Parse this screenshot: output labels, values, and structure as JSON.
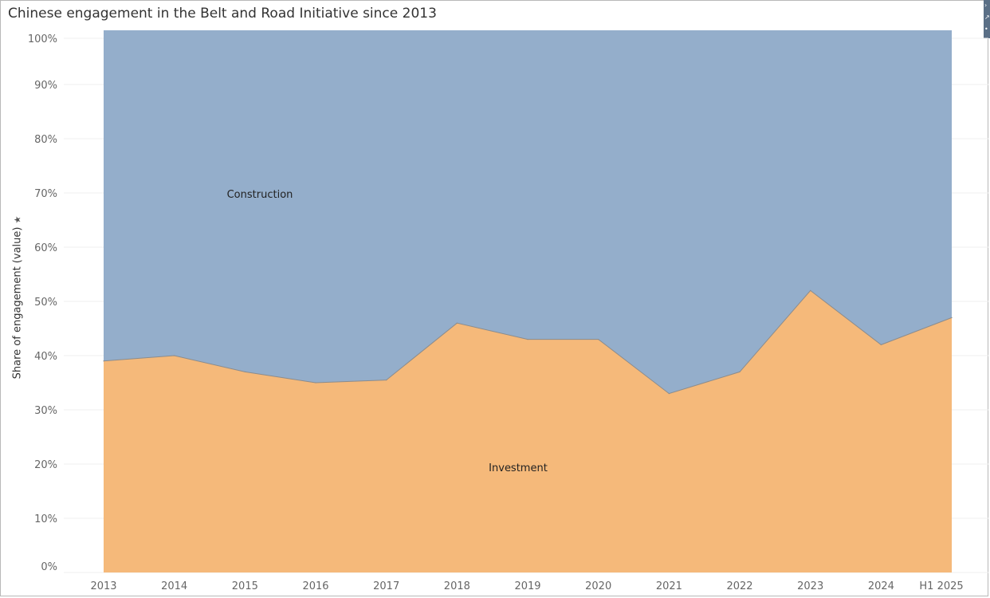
{
  "title": "Chinese engagement in the Belt and Road Initiative since 2013",
  "chart_data": {
    "type": "area",
    "stacked_percent": true,
    "title": "Chinese engagement in the Belt and Road Initiative since 2013",
    "xlabel": "",
    "ylabel": "Share of engagement (value)",
    "categories": [
      "2013",
      "2014",
      "2015",
      "2016",
      "2017",
      "2018",
      "2019",
      "2020",
      "2021",
      "2022",
      "2023",
      "2024",
      "H1  2025"
    ],
    "series": [
      {
        "name": "Investment",
        "values": [
          39,
          40,
          37,
          35,
          35.5,
          46,
          43,
          43,
          33,
          37,
          52,
          42,
          47
        ]
      },
      {
        "name": "Construction",
        "values": [
          61,
          60,
          63,
          65,
          64.5,
          54,
          57,
          57,
          67,
          63,
          48,
          58,
          53
        ]
      }
    ],
    "area_labels": [
      {
        "text": "Construction",
        "series": "Construction"
      },
      {
        "text": "Investment",
        "series": "Investment"
      }
    ],
    "yticks": [
      "0%",
      "10%",
      "20%",
      "30%",
      "40%",
      "50%",
      "60%",
      "70%",
      "80%",
      "90%",
      "100%"
    ],
    "ylim": [
      0,
      100
    ],
    "grid": true,
    "colors": {
      "Investment": "#f5b97a",
      "Construction": "#94aecb",
      "boundary": "#8c8c8c"
    }
  },
  "icons": {
    "ylabel_sort": "sort-icon"
  }
}
